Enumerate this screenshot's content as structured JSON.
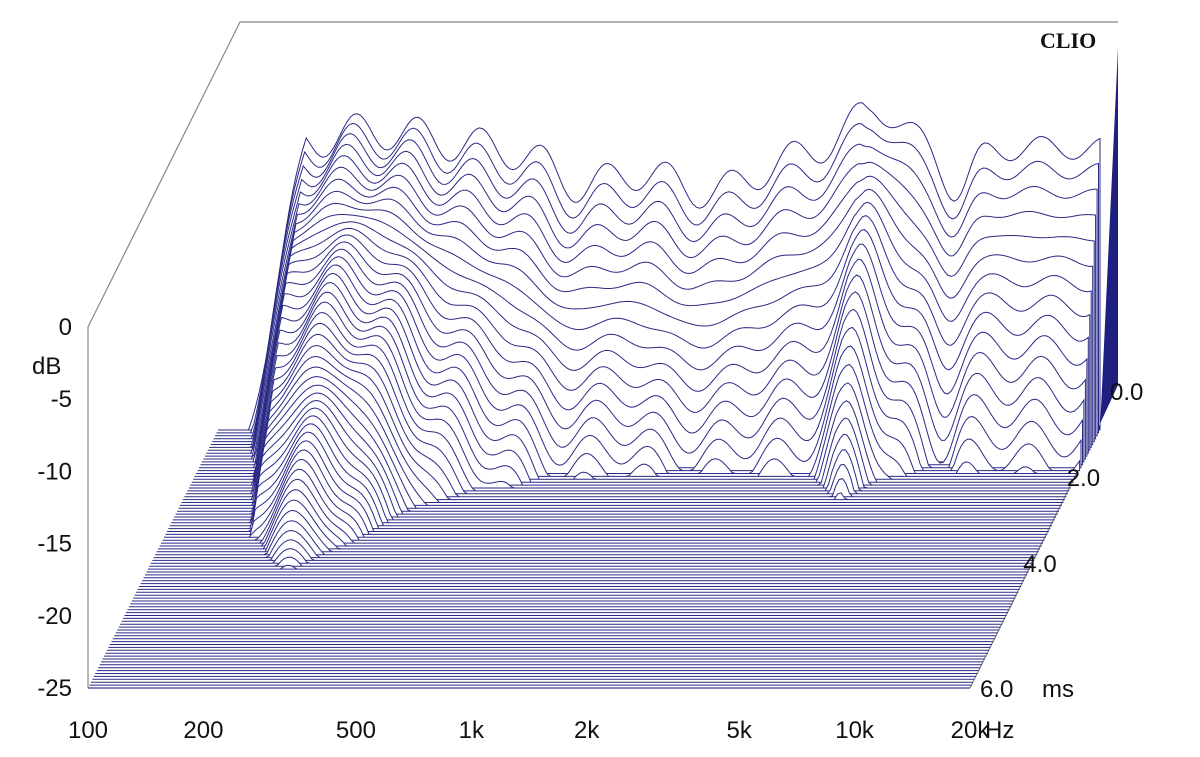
{
  "chart_data": {
    "type": "waterfall",
    "brand": "CLIO",
    "y_axis": {
      "unit": "dB",
      "ticks": [
        "0",
        "-5",
        "-10",
        "-15",
        "-20",
        "-25"
      ],
      "range": [
        -25,
        0
      ]
    },
    "x_axis": {
      "unit": "Hz",
      "ticks": [
        "100",
        "200",
        "500",
        "1k",
        "2k",
        "5k",
        "10k",
        "20k"
      ],
      "scale": "log",
      "range": [
        100,
        20000
      ]
    },
    "z_axis": {
      "unit": "ms",
      "ticks": [
        "0.0",
        "2.0",
        "4.0",
        "6.0"
      ],
      "range": [
        0,
        6
      ]
    },
    "grid": false,
    "colors": {
      "trace": "#2a2a86",
      "fill": "#1f1f80",
      "frame": "#888888",
      "text": "#111111"
    },
    "slice_count": 90,
    "ridges_db_at_0ms": [
      {
        "freq_hz": 200,
        "db": -4.5
      },
      {
        "freq_hz": 500,
        "db": -5.5
      },
      {
        "freq_hz": 1000,
        "db": -8
      },
      {
        "freq_hz": 2000,
        "db": -9
      },
      {
        "freq_hz": 5000,
        "db": -3
      },
      {
        "freq_hz": 10000,
        "db": -7
      },
      {
        "freq_hz": 20000,
        "db": -5.5
      }
    ]
  }
}
